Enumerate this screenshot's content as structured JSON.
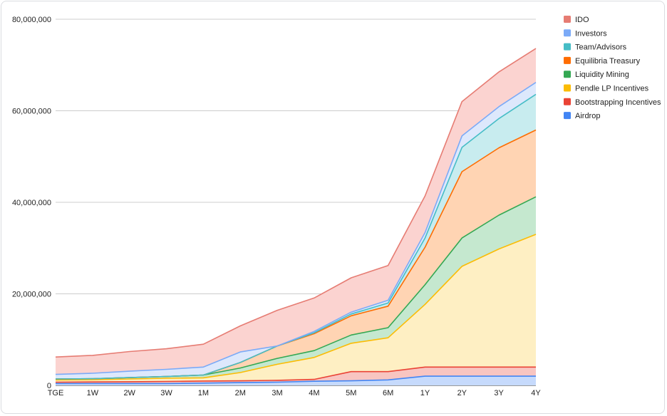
{
  "chart_data": {
    "type": "area",
    "stacked": true,
    "title": "",
    "xlabel": "",
    "ylabel": "",
    "ylim": [
      0,
      80000000
    ],
    "y_ticks": [
      0,
      20000000,
      40000000,
      60000000,
      80000000
    ],
    "y_tick_labels": [
      "0",
      "20,000,000",
      "40,000,000",
      "60,000,000",
      "80,000,000"
    ],
    "grid": true,
    "legend_position": "right",
    "categories": [
      "TGE",
      "1W",
      "2W",
      "3W",
      "1M",
      "2M",
      "3M",
      "4M",
      "5M",
      "6M",
      "1Y",
      "2Y",
      "3Y",
      "4Y"
    ],
    "series": [
      {
        "name": "Airdrop",
        "color": "#4285f4",
        "fill": "#c6dafc",
        "values": [
          400000,
          400000,
          400000,
          400000,
          500000,
          600000,
          700000,
          900000,
          1000000,
          1200000,
          2000000,
          2000000,
          2000000,
          2000000
        ]
      },
      {
        "name": "Bootstrapping Incentives",
        "color": "#ea4335",
        "fill": "#f8c5c1",
        "values": [
          300000,
          350000,
          400000,
          450000,
          450000,
          400000,
          400000,
          400000,
          2000000,
          1800000,
          2000000,
          2000000,
          2000000,
          2000000
        ]
      },
      {
        "name": "Pendle LP Incentives",
        "color": "#fbbc04",
        "fill": "#feefc3",
        "values": [
          500000,
          500000,
          600000,
          700000,
          700000,
          1800000,
          3500000,
          4800000,
          6200000,
          7400000,
          13700000,
          22000000,
          25800000,
          29000000
        ]
      },
      {
        "name": "Liquidity Mining",
        "color": "#34a853",
        "fill": "#c5e8cf",
        "values": [
          200000,
          200000,
          300000,
          400000,
          600000,
          1000000,
          1300000,
          1500000,
          1800000,
          2200000,
          4300000,
          6200000,
          7400000,
          8200000
        ]
      },
      {
        "name": "Equilibria Treasury",
        "color": "#ff6d01",
        "fill": "#ffd4b3",
        "values": [
          0,
          0,
          0,
          0,
          0,
          1200000,
          2700000,
          3700000,
          4200000,
          4700000,
          8200000,
          14500000,
          14700000,
          14600000
        ]
      },
      {
        "name": "Team/Advisors",
        "color": "#46bdc6",
        "fill": "#c8ecef",
        "values": [
          0,
          0,
          0,
          0,
          0,
          0,
          0,
          200000,
          400000,
          700000,
          2000000,
          5300000,
          6400000,
          7800000
        ]
      },
      {
        "name": "Investors",
        "color": "#7baaf7",
        "fill": "#dde8fc",
        "values": [
          1000000,
          1200000,
          1400000,
          1550000,
          1750000,
          2300000,
          0,
          300000,
          400000,
          600000,
          1200000,
          2500000,
          2600000,
          2600000
        ]
      },
      {
        "name": "IDO",
        "color": "#e67c73",
        "fill": "#fbd3d0",
        "values": [
          3800000,
          3900000,
          4300000,
          4500000,
          5000000,
          5700000,
          7800000,
          7300000,
          7500000,
          7600000,
          8000000,
          7500000,
          7600000,
          7400000
        ]
      }
    ],
    "legend_order": [
      "IDO",
      "Investors",
      "Team/Advisors",
      "Equilibria Treasury",
      "Liquidity Mining",
      "Pendle LP Incentives",
      "Bootstrapping Incentives",
      "Airdrop"
    ]
  }
}
